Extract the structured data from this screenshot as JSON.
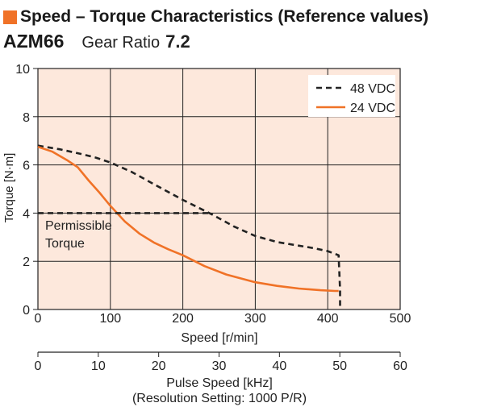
{
  "header": {
    "title": "Speed – Torque Characteristics (Reference values)",
    "model": "AZM66",
    "gear_label": "Gear Ratio",
    "gear_value": "7.2"
  },
  "colors": {
    "accent": "#f07227",
    "plot_background": "#fde8dc",
    "series_48": "#222222",
    "series_24": "#f07227"
  },
  "chart_data": {
    "type": "line",
    "xlabel": "Speed [r/min]",
    "ylabel": "Torque [N·m]",
    "xlim": [
      0,
      500
    ],
    "ylim": [
      0,
      10
    ],
    "x_ticks": [
      "0",
      "100",
      "200",
      "300",
      "400",
      "500"
    ],
    "y_ticks": [
      "0",
      "2",
      "4",
      "6",
      "8",
      "10"
    ],
    "grid": true,
    "legend_position": "top-right",
    "secondary_axis": {
      "label_line1": "Pulse Speed [kHz]",
      "label_line2": "(Resolution Setting: 1000 P/R)",
      "range": [
        0,
        60
      ],
      "ticks": [
        "0",
        "10",
        "20",
        "30",
        "40",
        "50",
        "60"
      ]
    },
    "annotation": {
      "line1": "Permissible",
      "line2": "Torque"
    },
    "series": [
      {
        "name": "48 VDC",
        "style": "dashed",
        "x": [
          0,
          30,
          60,
          80,
          100,
          130,
          160,
          200,
          240,
          270,
          300,
          330,
          360,
          380,
          400,
          415,
          417,
          417
        ],
        "y": [
          6.8,
          6.65,
          6.45,
          6.3,
          6.1,
          5.7,
          5.2,
          4.55,
          3.95,
          3.45,
          3.05,
          2.8,
          2.65,
          2.55,
          2.42,
          2.25,
          0.8,
          0
        ]
      },
      {
        "name": "24 VDC",
        "style": "solid",
        "x": [
          0,
          20,
          40,
          55,
          70,
          85,
          100,
          120,
          140,
          160,
          180,
          200,
          230,
          260,
          300,
          330,
          360,
          390,
          410,
          415
        ],
        "y": [
          6.75,
          6.55,
          6.2,
          5.9,
          5.35,
          4.85,
          4.3,
          3.65,
          3.15,
          2.78,
          2.5,
          2.25,
          1.8,
          1.45,
          1.13,
          0.98,
          0.87,
          0.8,
          0.77,
          0.77
        ]
      },
      {
        "name": "Permissible Torque",
        "style": "dashed",
        "x": [
          0,
          240
        ],
        "y": [
          4,
          4
        ]
      }
    ]
  }
}
